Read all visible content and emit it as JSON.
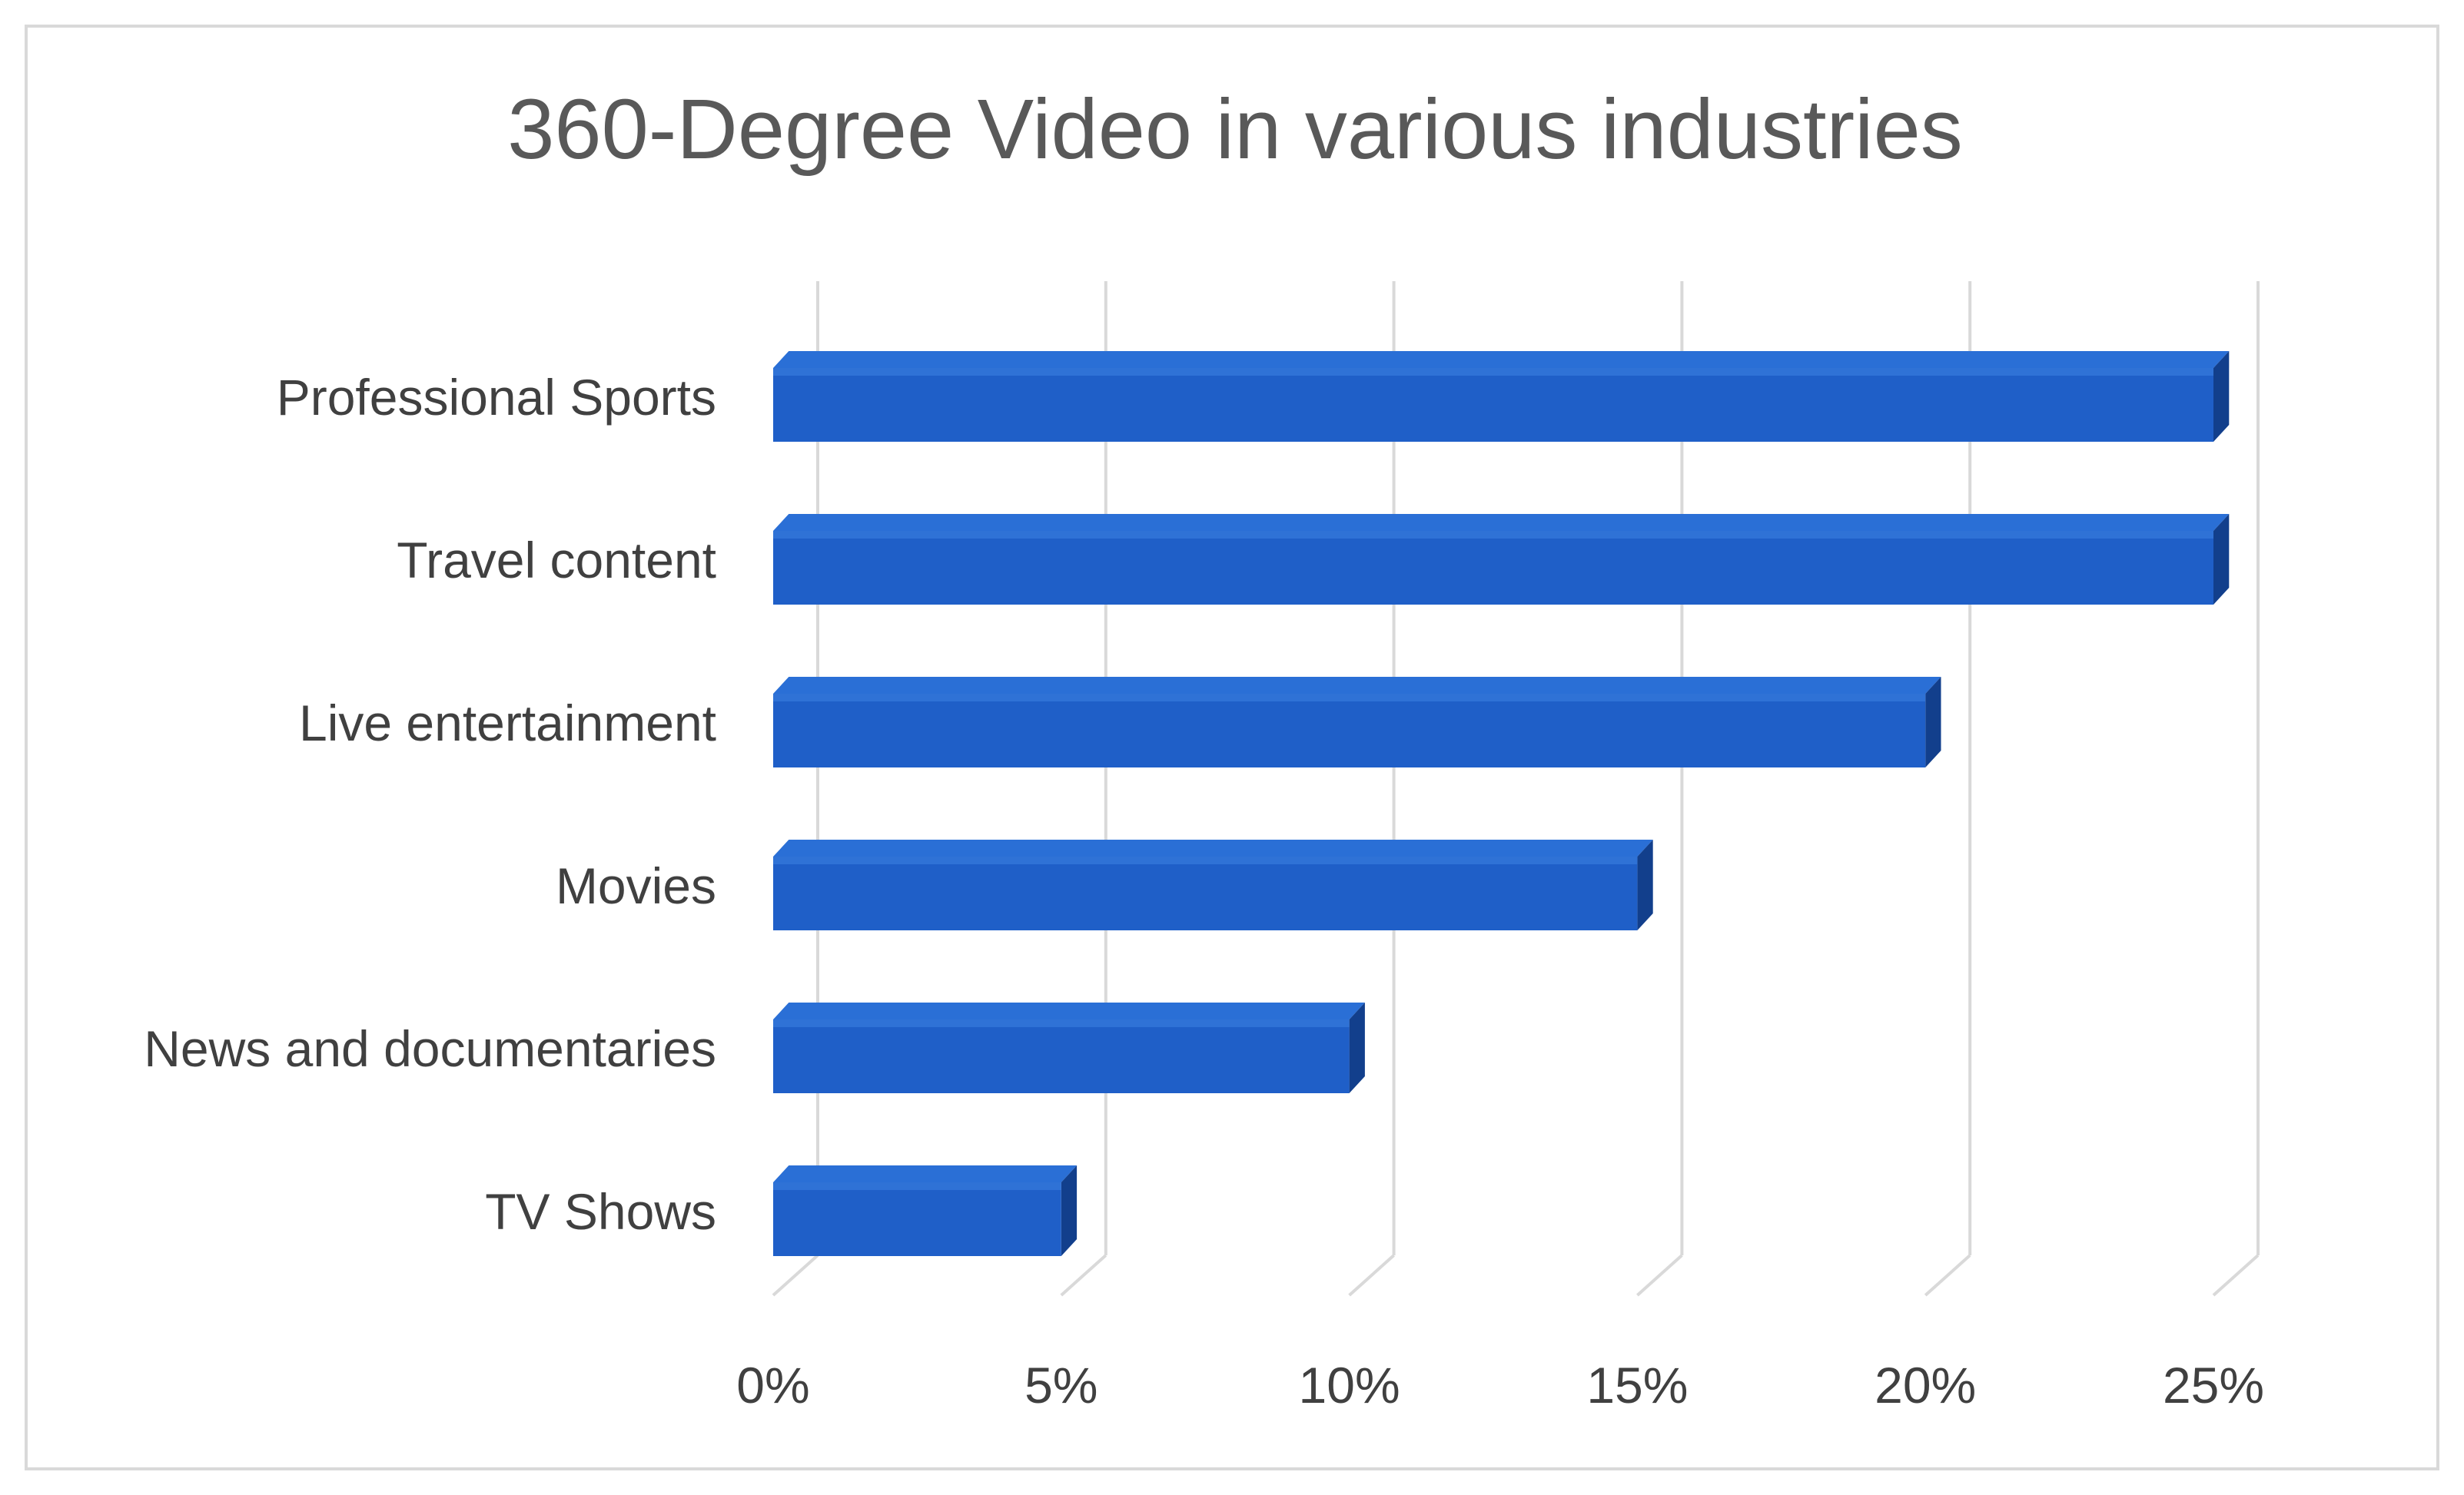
{
  "chart_data": {
    "type": "bar",
    "orientation": "horizontal",
    "style": "3d",
    "title": "360-Degree Video in various industries",
    "categories": [
      "Professional Sports",
      "Travel content",
      "Live entertainment",
      "Movies",
      "News and documentaries",
      "TV Shows"
    ],
    "values": [
      25,
      25,
      20,
      15,
      10,
      5
    ],
    "value_unit": "%",
    "xlim": [
      0,
      25
    ],
    "x_ticks": [
      "0%",
      "5%",
      "10%",
      "15%",
      "20%",
      "25%"
    ],
    "x_tick_values": [
      0,
      5,
      10,
      15,
      20,
      25
    ],
    "grid": "vertical",
    "legend": "none",
    "colors": {
      "bar_front": "#1f5fc8",
      "bar_top": "#2a6fd6",
      "bar_side": "#123f8c",
      "grid": "#d9d9d9",
      "title": "#595959",
      "labels": "#404040"
    }
  }
}
